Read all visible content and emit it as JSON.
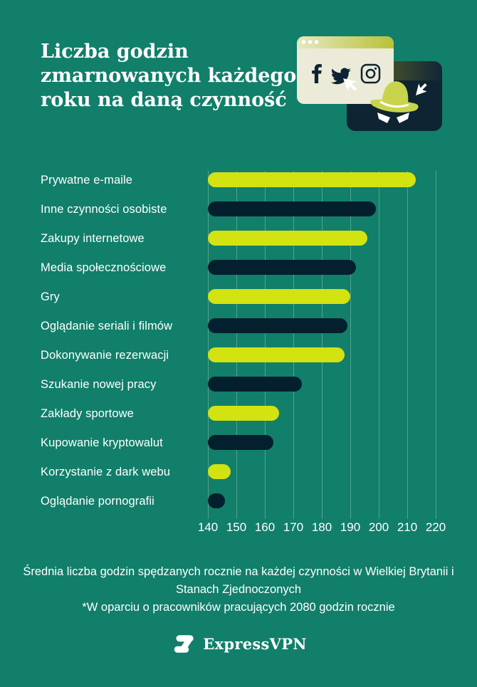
{
  "title": {
    "full": "Liczba godzin zmarnowanych każdego roku na daną czynność",
    "lines": [
      "Liczba godzin",
      "zmarnowanych każdego",
      "roku na daną czynność"
    ]
  },
  "chart_data": {
    "type": "bar",
    "orientation": "horizontal",
    "title": "Liczba godzin zmarnowanych każdego roku na daną czynność",
    "categories": [
      "Prywatne e-maile",
      "Inne czynności osobiste",
      "Zakupy internetowe",
      "Media społecznościowe",
      "Gry",
      "Oglądanie seriali i filmów",
      "Dokonywanie rezerwacji",
      "Szukanie nowej pracy",
      "Zakłady sportowe",
      "Kupowanie kryptowalut",
      "Korzystanie z dark webu",
      "Oglądanie pornografii"
    ],
    "values": [
      213,
      199,
      196,
      192,
      190,
      189,
      188,
      173,
      165,
      163,
      148,
      146
    ],
    "xlim": [
      140,
      220
    ],
    "x_ticks": [
      140,
      150,
      160,
      170,
      180,
      190,
      200,
      210,
      220
    ],
    "grid": "vertical",
    "legend": "none",
    "bar_colors": [
      "#D3E211",
      "#04202F"
    ]
  },
  "footer": {
    "line1": "Średnia liczba godzin spędzanych rocznie na każdej czynności w Wielkiej Brytanii i Stanach Zjednoczonych",
    "line2": "*W oparciu o pracowników pracujących 2080 godzin rocznie"
  },
  "brand": {
    "name": "ExpressVPN"
  },
  "illustration": {
    "icons": [
      "facebook-icon",
      "twitter-icon",
      "instagram-icon",
      "cursor-icon",
      "incognito-spy-icon",
      "browser-window",
      "window-dots"
    ]
  },
  "colors": {
    "background": "#117F6A",
    "lime": "#D3E211",
    "navy": "#04202F",
    "gridline": "#55A28C",
    "cream": "#ECEAD8",
    "text": "#FFFFFF"
  }
}
